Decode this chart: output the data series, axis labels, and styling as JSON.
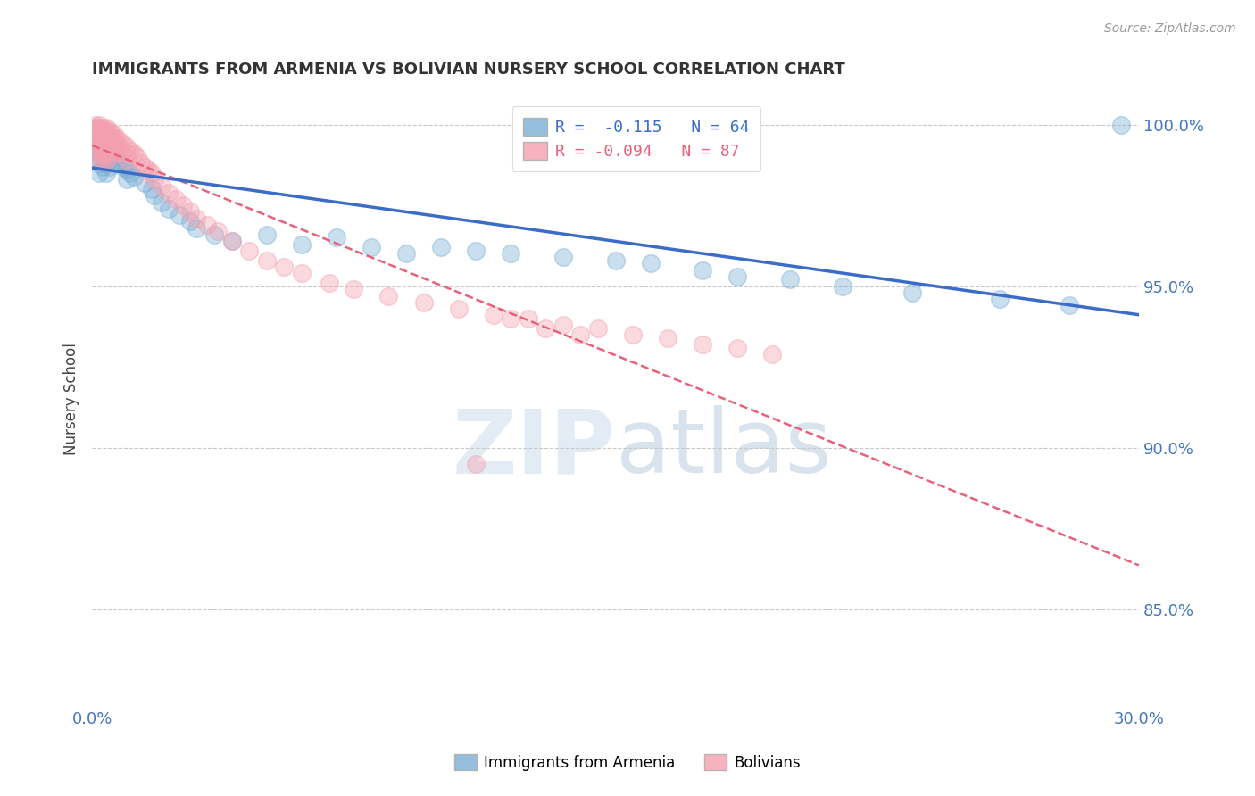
{
  "title": "IMMIGRANTS FROM ARMENIA VS BOLIVIAN NURSERY SCHOOL CORRELATION CHART",
  "source": "Source: ZipAtlas.com",
  "ylabel": "Nursery School",
  "xlim": [
    0.0,
    0.3
  ],
  "ylim": [
    0.82,
    1.01
  ],
  "yticks": [
    0.85,
    0.9,
    0.95,
    1.0
  ],
  "ytick_labels": [
    "85.0%",
    "90.0%",
    "95.0%",
    "100.0%"
  ],
  "xticks": [
    0.0,
    0.3
  ],
  "xtick_labels": [
    "0.0%",
    "30.0%"
  ],
  "legend_line1": "R =  -0.115   N = 64",
  "legend_line2": "R = -0.094   N = 87",
  "legend_label_blue": "Immigrants from Armenia",
  "legend_label_pink": "Bolivians",
  "blue_color": "#7BAFD4",
  "pink_color": "#F4A0B0",
  "blue_line_color": "#3A6CC8",
  "pink_line_color": "#E8607A",
  "background_color": "#FFFFFF",
  "grid_color": "#C8C8C8",
  "title_color": "#333333",
  "axis_color": "#4477BB",
  "blue_scatter_x": [
    0.001,
    0.001,
    0.001,
    0.001,
    0.001,
    0.002,
    0.002,
    0.002,
    0.002,
    0.002,
    0.002,
    0.003,
    0.003,
    0.003,
    0.003,
    0.003,
    0.004,
    0.004,
    0.004,
    0.004,
    0.004,
    0.005,
    0.005,
    0.005,
    0.005,
    0.006,
    0.006,
    0.007,
    0.007,
    0.008,
    0.009,
    0.01,
    0.01,
    0.011,
    0.012,
    0.015,
    0.017,
    0.018,
    0.02,
    0.022,
    0.025,
    0.028,
    0.03,
    0.035,
    0.04,
    0.05,
    0.06,
    0.07,
    0.08,
    0.09,
    0.1,
    0.11,
    0.12,
    0.135,
    0.15,
    0.16,
    0.175,
    0.185,
    0.2,
    0.215,
    0.235,
    0.26,
    0.28,
    0.295
  ],
  "blue_scatter_y": [
    0.999,
    0.997,
    0.995,
    0.993,
    0.99,
    0.998,
    0.996,
    0.994,
    0.991,
    0.988,
    0.985,
    0.997,
    0.995,
    0.993,
    0.99,
    0.987,
    0.996,
    0.993,
    0.991,
    0.988,
    0.985,
    0.995,
    0.992,
    0.99,
    0.987,
    0.993,
    0.99,
    0.991,
    0.988,
    0.989,
    0.987,
    0.986,
    0.983,
    0.985,
    0.984,
    0.982,
    0.98,
    0.978,
    0.976,
    0.974,
    0.972,
    0.97,
    0.968,
    0.966,
    0.964,
    0.966,
    0.963,
    0.965,
    0.962,
    0.96,
    0.962,
    0.961,
    0.96,
    0.959,
    0.958,
    0.957,
    0.955,
    0.953,
    0.952,
    0.95,
    0.948,
    0.946,
    0.944,
    1.0
  ],
  "pink_scatter_x": [
    0.001,
    0.001,
    0.001,
    0.001,
    0.001,
    0.001,
    0.002,
    0.002,
    0.002,
    0.002,
    0.002,
    0.002,
    0.002,
    0.002,
    0.003,
    0.003,
    0.003,
    0.003,
    0.003,
    0.003,
    0.003,
    0.004,
    0.004,
    0.004,
    0.004,
    0.004,
    0.004,
    0.004,
    0.005,
    0.005,
    0.005,
    0.005,
    0.005,
    0.005,
    0.006,
    0.006,
    0.006,
    0.006,
    0.007,
    0.007,
    0.007,
    0.008,
    0.008,
    0.008,
    0.009,
    0.01,
    0.01,
    0.01,
    0.011,
    0.012,
    0.013,
    0.014,
    0.015,
    0.016,
    0.017,
    0.018,
    0.02,
    0.022,
    0.024,
    0.026,
    0.028,
    0.03,
    0.033,
    0.036,
    0.04,
    0.045,
    0.05,
    0.055,
    0.06,
    0.068,
    0.075,
    0.085,
    0.095,
    0.105,
    0.115,
    0.125,
    0.135,
    0.145,
    0.155,
    0.165,
    0.175,
    0.185,
    0.195,
    0.11,
    0.12,
    0.13,
    0.14
  ],
  "pink_scatter_y": [
    1.0,
    0.999,
    0.998,
    0.997,
    0.996,
    0.994,
    1.0,
    0.999,
    0.998,
    0.997,
    0.995,
    0.993,
    0.991,
    0.989,
    0.999,
    0.998,
    0.997,
    0.995,
    0.993,
    0.991,
    0.989,
    0.999,
    0.998,
    0.997,
    0.995,
    0.993,
    0.991,
    0.989,
    0.998,
    0.997,
    0.996,
    0.994,
    0.992,
    0.99,
    0.997,
    0.996,
    0.994,
    0.992,
    0.996,
    0.994,
    0.992,
    0.995,
    0.993,
    0.991,
    0.994,
    0.993,
    0.991,
    0.989,
    0.992,
    0.991,
    0.99,
    0.988,
    0.987,
    0.986,
    0.985,
    0.983,
    0.981,
    0.979,
    0.977,
    0.975,
    0.973,
    0.971,
    0.969,
    0.967,
    0.964,
    0.961,
    0.958,
    0.956,
    0.954,
    0.951,
    0.949,
    0.947,
    0.945,
    0.943,
    0.941,
    0.94,
    0.938,
    0.937,
    0.935,
    0.934,
    0.932,
    0.931,
    0.929,
    0.895,
    0.94,
    0.937,
    0.935
  ]
}
